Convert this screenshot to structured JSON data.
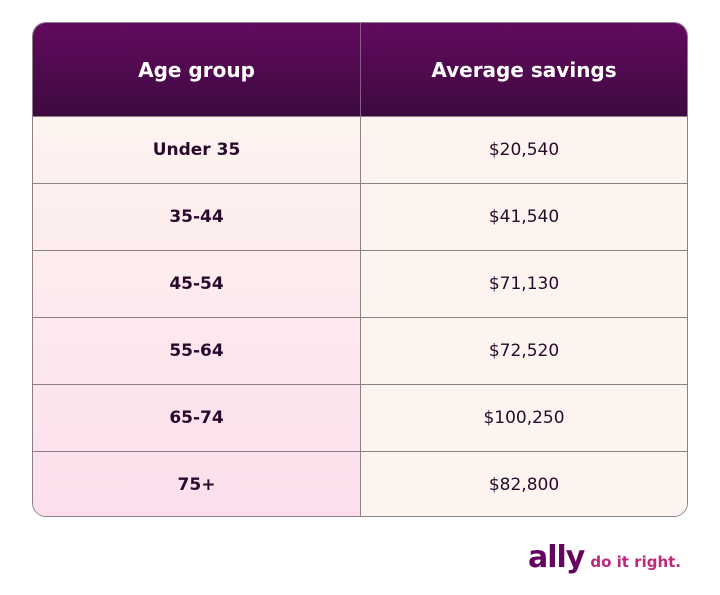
{
  "table": {
    "headers": [
      "Age group",
      "Average savings"
    ],
    "rows": [
      [
        "Under 35",
        "$20,540"
      ],
      [
        "35-44",
        "$41,540"
      ],
      [
        "45-54",
        "$71,130"
      ],
      [
        "55-64",
        "$72,520"
      ],
      [
        "65-74",
        "$100,250"
      ],
      [
        "75+",
        "$82,800"
      ]
    ]
  },
  "logo": {
    "brand": "ally",
    "tagline": "do it right."
  }
}
